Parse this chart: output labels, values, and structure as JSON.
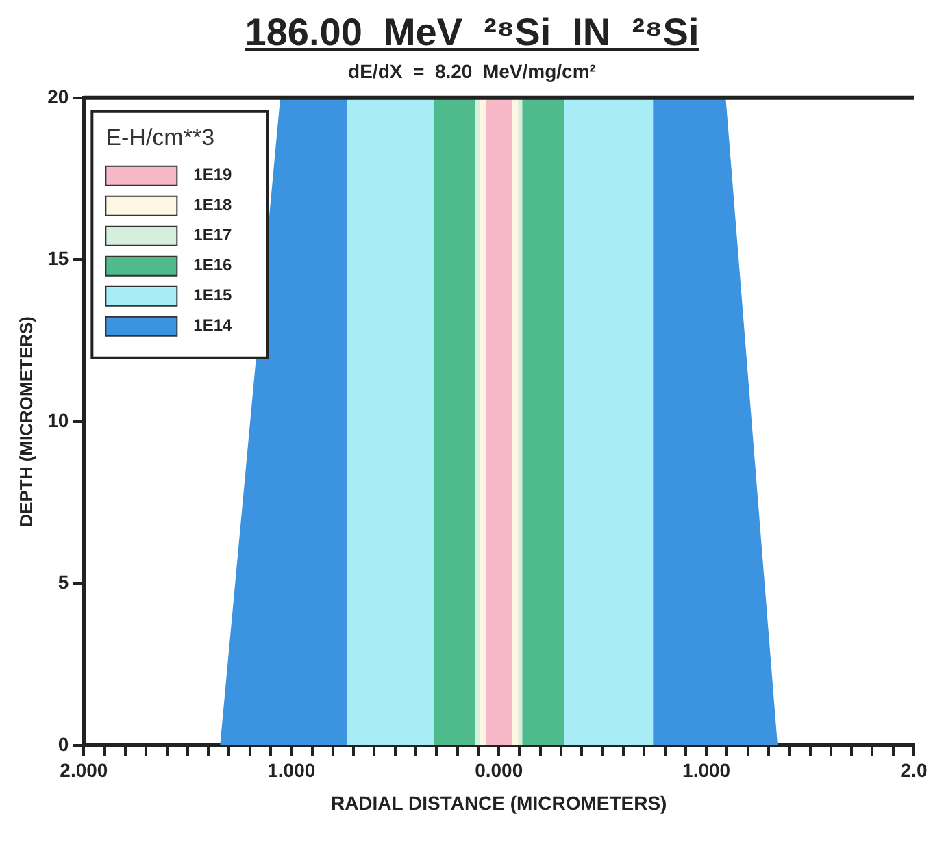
{
  "chart_data": {
    "type": "area",
    "title": "186.00  MeV  ²⁸Si  IN  ²⁸Si",
    "subtitle": "dE/dX  =  8.20  MeV/mg/cm²",
    "xlabel": "RADIAL DISTANCE (MICROMETERS)",
    "ylabel": "DEPTH (MICROMETERS)",
    "legend_title": "E-H/cm**3",
    "legend": "top left",
    "grid": false,
    "marker": "none",
    "xlim": [
      -2,
      2
    ],
    "ylim": [
      0,
      20
    ],
    "yticks": [
      0,
      5,
      10,
      15,
      20
    ],
    "xticks": [
      {
        "value": -2,
        "label": "2.000"
      },
      {
        "value": -1.9,
        "label": null
      },
      {
        "value": -1.8,
        "label": null
      },
      {
        "value": -1.7,
        "label": null
      },
      {
        "value": -1.6,
        "label": null
      },
      {
        "value": -1.5,
        "label": null
      },
      {
        "value": -1.4,
        "label": null
      },
      {
        "value": -1.3,
        "label": null
      },
      {
        "value": -1.2,
        "label": null
      },
      {
        "value": -1.1,
        "label": null
      },
      {
        "value": -1,
        "label": "1.000"
      },
      {
        "value": -0.9,
        "label": null
      },
      {
        "value": -0.8,
        "label": null
      },
      {
        "value": -0.7,
        "label": null
      },
      {
        "value": -0.6,
        "label": null
      },
      {
        "value": -0.5,
        "label": null
      },
      {
        "value": -0.4,
        "label": null
      },
      {
        "value": -0.3,
        "label": null
      },
      {
        "value": -0.2,
        "label": null
      },
      {
        "value": -0.1,
        "label": null
      },
      {
        "value": 0,
        "label": "0.000"
      },
      {
        "value": 0.1,
        "label": null
      },
      {
        "value": 0.2,
        "label": null
      },
      {
        "value": 0.3,
        "label": null
      },
      {
        "value": 0.4,
        "label": null
      },
      {
        "value": 0.5,
        "label": null
      },
      {
        "value": 0.6,
        "label": null
      },
      {
        "value": 0.7,
        "label": null
      },
      {
        "value": 0.8,
        "label": null
      },
      {
        "value": 0.9,
        "label": null
      },
      {
        "value": 1,
        "label": "1.000"
      },
      {
        "value": 1.1,
        "label": null
      },
      {
        "value": 1.2,
        "label": null
      },
      {
        "value": 1.3,
        "label": null
      },
      {
        "value": 1.4,
        "label": null
      },
      {
        "value": 1.5,
        "label": null
      },
      {
        "value": 1.6,
        "label": null
      },
      {
        "value": 1.7,
        "label": null
      },
      {
        "value": 1.8,
        "label": null
      },
      {
        "value": 1.9,
        "label": null
      },
      {
        "value": 2,
        "label": "2.0"
      }
    ],
    "series": [
      {
        "name": "1E19",
        "color": "#f7b8c8",
        "x": [
          -0.06,
          -0.06,
          0.06,
          0.06
        ],
        "values": [
          0,
          20,
          20,
          0
        ]
      },
      {
        "name": "1E18",
        "color": "#fdf6e3",
        "x": [
          -0.09,
          -0.09,
          0.09,
          0.09
        ],
        "values": [
          0,
          20,
          20,
          0
        ]
      },
      {
        "name": "1E17",
        "color": "#d6eedd",
        "x": [
          -0.11,
          -0.11,
          0.11,
          0.11
        ],
        "values": [
          0,
          20,
          20,
          0
        ]
      },
      {
        "name": "1E16",
        "color": "#4fba8c",
        "x": [
          -0.31,
          -0.31,
          0.31,
          0.31
        ],
        "values": [
          0,
          20,
          20,
          0
        ]
      },
      {
        "name": "1E15",
        "color": "#a8ecf6",
        "x": [
          -0.73,
          -0.73,
          0.74,
          0.74
        ],
        "values": [
          0,
          20,
          20,
          0
        ]
      },
      {
        "name": "1E14",
        "color": "#3c93e0",
        "x": [
          -1.34,
          -1.05,
          1.09,
          1.34
        ],
        "values": [
          0,
          20,
          20,
          0
        ]
      }
    ]
  }
}
